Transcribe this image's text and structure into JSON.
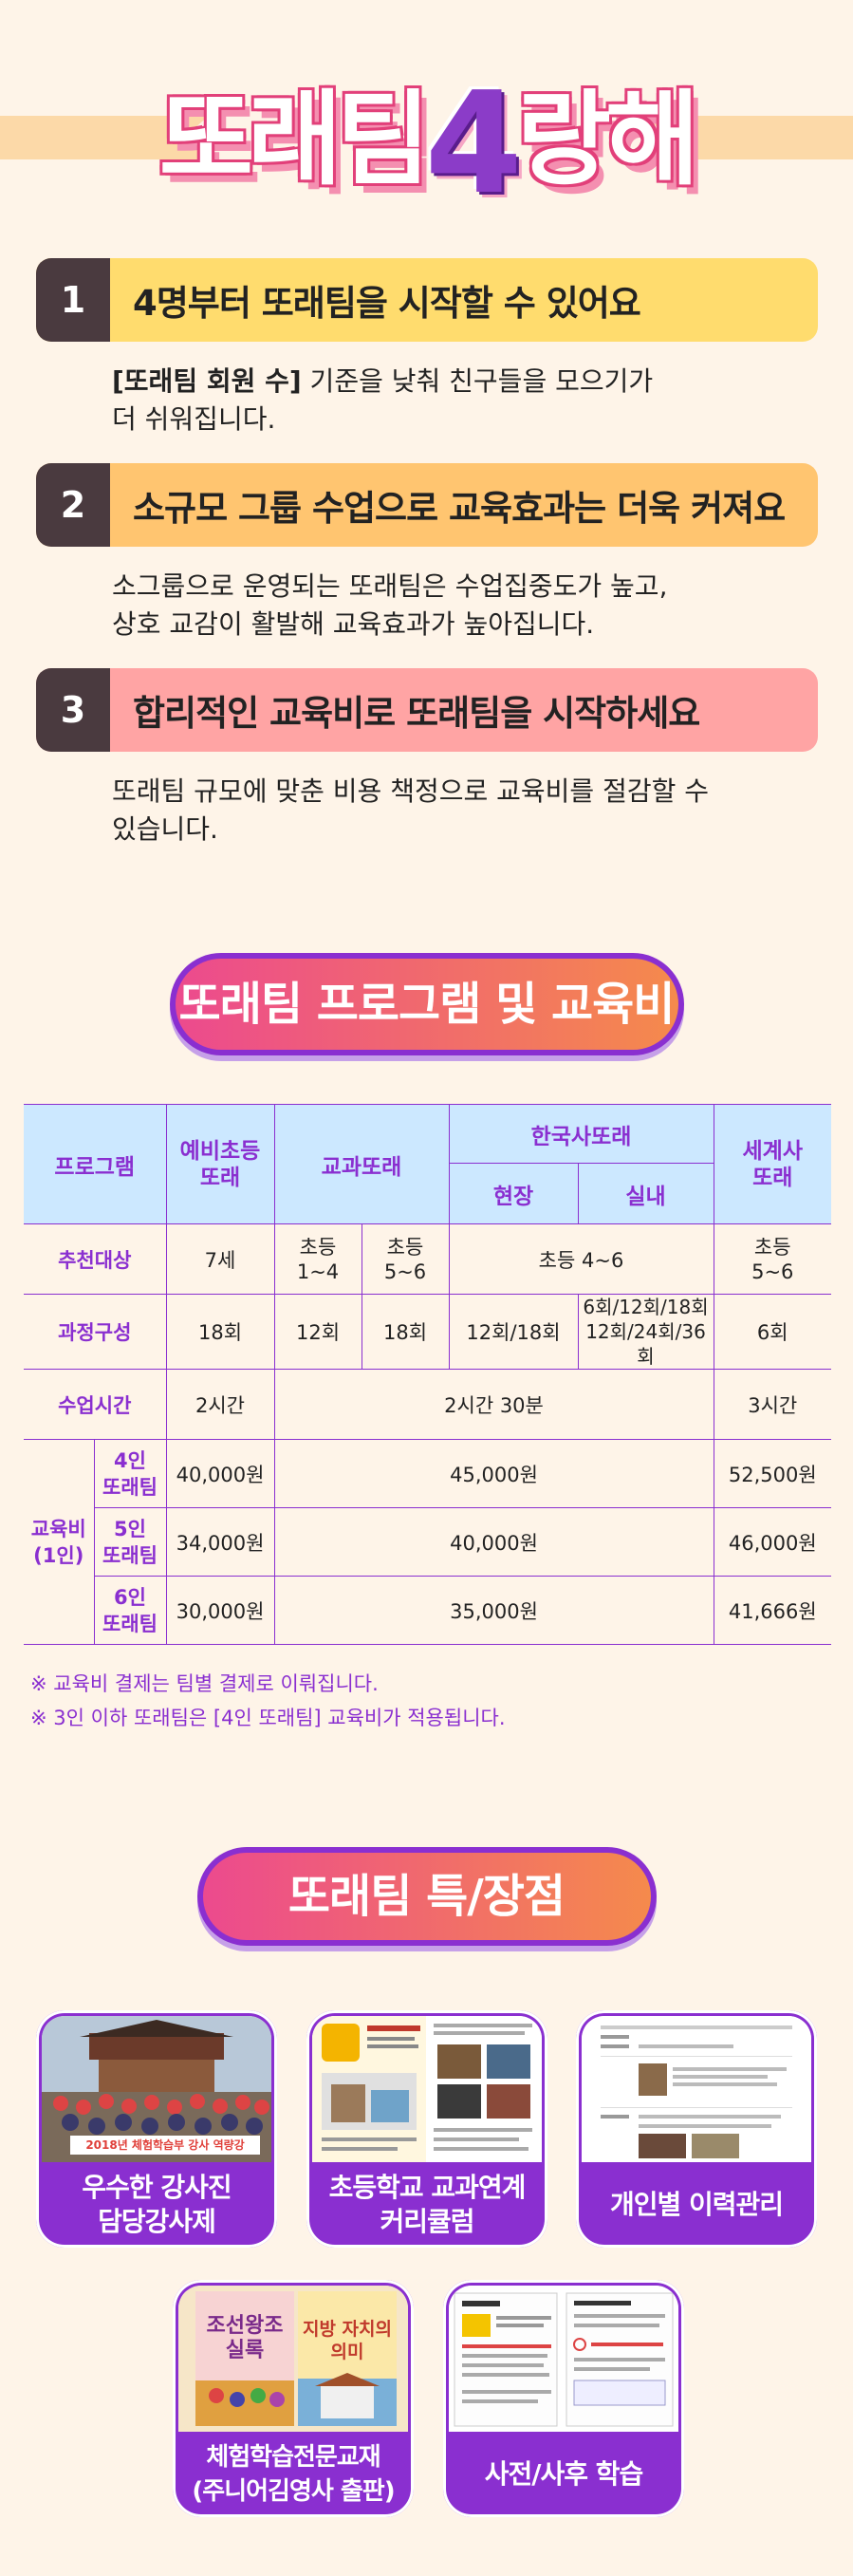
{
  "hero": {
    "title_pre": "또래팀",
    "title_num": "4",
    "title_post": "랑해"
  },
  "features": [
    {
      "num": "1",
      "title": "4명부터 또래팀을 시작할 수 있어요",
      "desc_bold": "[또래팀 회원 수]",
      "desc_rest": " 기준을 낮춰 친구들을 모으기가",
      "desc_line2": "더 쉬워집니다.",
      "color": "#ffdc6e"
    },
    {
      "num": "2",
      "title": "소규모 그룹 수업으로 교육효과는 더욱 커져요",
      "desc_bold": "",
      "desc_rest": "소그룹으로 운영되는 또래팀은 수업집중도가 높고,",
      "desc_line2": "상호 교감이 활발해 교육효과가 높아집니다.",
      "color": "#ffc570"
    },
    {
      "num": "3",
      "title": "합리적인 교육비로 또래팀을 시작하세요",
      "desc_bold": "",
      "desc_rest": "또래팀 규모에 맞춘 비용 책정으로 교육비를 절감할 수",
      "desc_line2": "있습니다.",
      "color": "#ffa4a4"
    }
  ],
  "program_pill": "또래팀 프로그램 및 교육비",
  "table": {
    "h_program": "프로그램",
    "h_yebi": "예비초등\n또래",
    "h_gyogwa": "교과또래",
    "h_hanguk": "한국사또래",
    "h_hyeonjang": "현장",
    "h_silnae": "실내",
    "h_segye": "세계사\n또래",
    "r_target": "추천대상",
    "target": [
      "7세",
      "초등\n1~4",
      "초등\n5~6",
      "초등 4~6",
      "초등\n5~6"
    ],
    "r_course": "과정구성",
    "course": [
      "18회",
      "12회",
      "18회",
      "12회/18회",
      "6회/12회/18회\n12회/24회/36회",
      "6회"
    ],
    "r_time": "수업시간",
    "time": [
      "2시간",
      "2시간 30분",
      "3시간"
    ],
    "r_fee": "교육비\n(1인)",
    "fees": [
      {
        "size": "4인\n또래팀",
        "yebi": "40,000원",
        "mid": "45,000원",
        "segye": "52,500원"
      },
      {
        "size": "5인\n또래팀",
        "yebi": "34,000원",
        "mid": "40,000원",
        "segye": "46,000원"
      },
      {
        "size": "6인\n또래팀",
        "yebi": "30,000원",
        "mid": "35,000원",
        "segye": "41,666원"
      }
    ]
  },
  "notes": [
    "※ 교육비 결제는 팀별 결제로 이뤄집니다.",
    "※ 3인 이하 또래팀은 [4인 또래팀] 교육비가 적용됩니다."
  ],
  "merit_pill": "또래팀 특/장점",
  "cards": [
    {
      "label": "우수한 강사진\n담당강사제",
      "banner": "2018년 체험학습부 강사 역량강"
    },
    {
      "label": "초등학교 교과연계\n커리큘럼",
      "banner": ""
    },
    {
      "label": "개인별 이력관리",
      "banner": ""
    },
    {
      "label": "체험학습전문교재\n(주니어김영사 출판)",
      "book1": "조선왕조\n실록",
      "book2": "지방 자치의\n의미"
    },
    {
      "label": "사전/사후 학습",
      "banner": ""
    }
  ]
}
